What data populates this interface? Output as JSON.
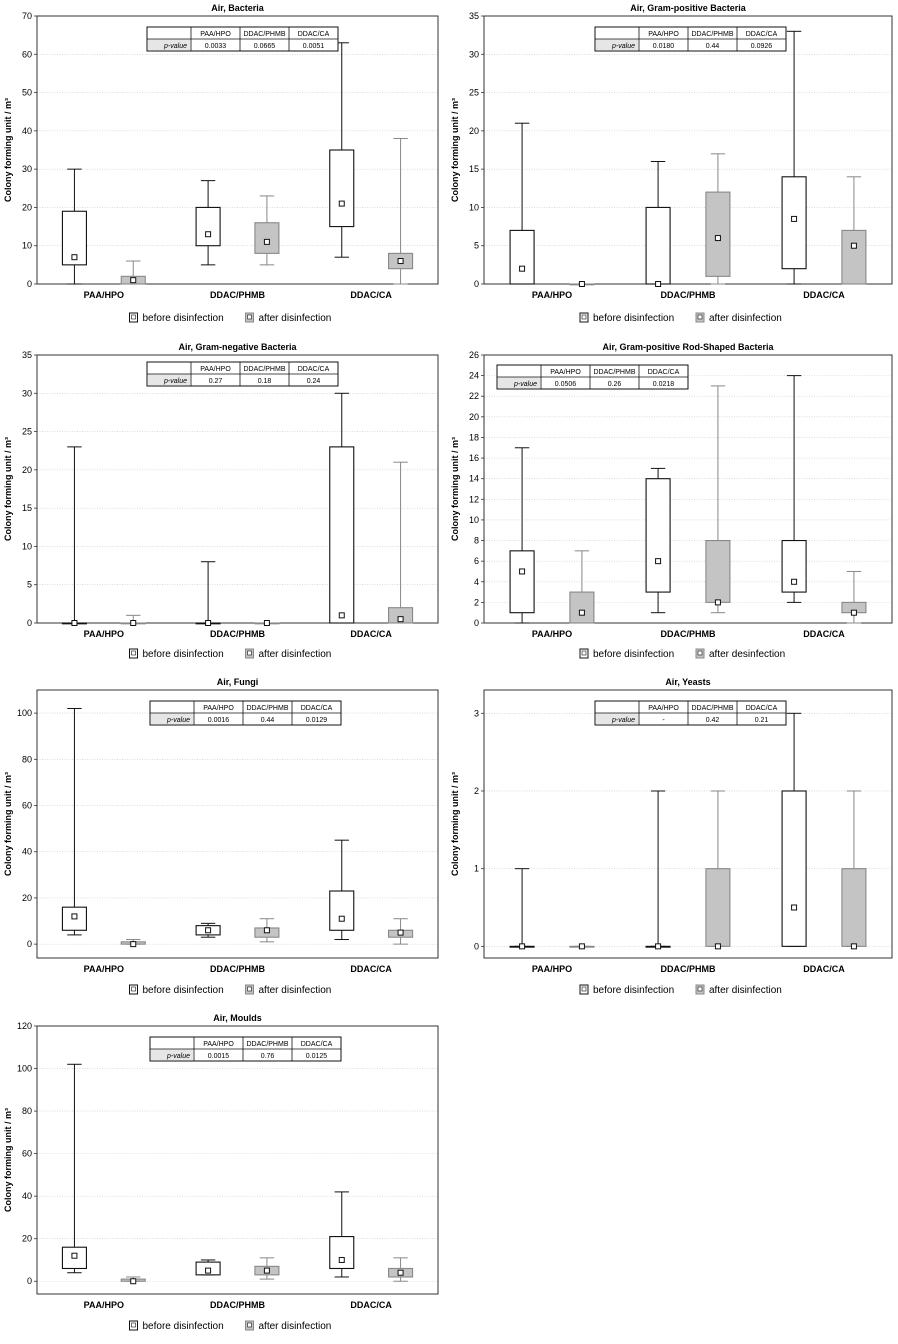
{
  "legend_text": {
    "before": "before disinfection",
    "after": "after disinfection",
    "after_alt": "after desinfection"
  },
  "colors": {
    "before_fill": "#ffffff",
    "after_fill": "#c4c4c4",
    "frame": "#333333",
    "grid": "#c8c8c8",
    "table_header_bg": "#ffffff",
    "table_label_bg": "#e6e6e6"
  },
  "chart_data": [
    {
      "type": "box",
      "title": "Air, Bacteria",
      "ylabel": "Colony forming unit / m³",
      "ylim": [
        0,
        70
      ],
      "yticks": [
        0,
        10,
        20,
        30,
        40,
        50,
        60,
        70
      ],
      "categories": [
        "PAA/HPO",
        "DDAC/PHMB",
        "DDAC/CA"
      ],
      "series": [
        {
          "name": "before disinfection",
          "boxes": [
            {
              "min": 0,
              "q1": 5,
              "median": 7,
              "q3": 19,
              "max": 30
            },
            {
              "min": 5,
              "q1": 10,
              "median": 13,
              "q3": 20,
              "max": 27
            },
            {
              "min": 7,
              "q1": 15,
              "median": 21,
              "q3": 35,
              "max": 63
            }
          ]
        },
        {
          "name": "after disinfection",
          "boxes": [
            {
              "min": 0,
              "q1": 0,
              "median": 1,
              "q3": 2,
              "max": 6
            },
            {
              "min": 5,
              "q1": 8,
              "median": 11,
              "q3": 16,
              "max": 23
            },
            {
              "min": 0,
              "q1": 4,
              "median": 6,
              "q3": 8,
              "max": 38
            }
          ]
        }
      ],
      "pvalue_table": {
        "label": "p-value",
        "headers": [
          "PAA/HPO",
          "DDAC/PHMB",
          "DDAC/CA"
        ],
        "values": [
          "0.0033",
          "0.0665",
          "0.0051"
        ]
      },
      "legend": [
        "before disinfection",
        "after disinfection"
      ]
    },
    {
      "type": "box",
      "title": "Air, Gram-positive Bacteria",
      "ylabel": "Colony forming unit / m³",
      "ylim": [
        0,
        35
      ],
      "yticks": [
        0,
        5,
        10,
        15,
        20,
        25,
        30,
        35
      ],
      "categories": [
        "PAA/HPO",
        "DDAC/PHMB",
        "DDAC/CA"
      ],
      "series": [
        {
          "name": "before disinfection",
          "boxes": [
            {
              "min": 0,
              "q1": 0,
              "median": 2,
              "q3": 7,
              "max": 21
            },
            {
              "min": 0,
              "q1": 0,
              "median": 0,
              "q3": 10,
              "max": 16
            },
            {
              "min": 0,
              "q1": 2,
              "median": 8.5,
              "q3": 14,
              "max": 33
            }
          ]
        },
        {
          "name": "after disinfection",
          "boxes": [
            {
              "min": 0,
              "q1": 0,
              "median": 0,
              "q3": 0,
              "max": 0
            },
            {
              "min": 0,
              "q1": 1,
              "median": 6,
              "q3": 12,
              "max": 17
            },
            {
              "min": 0,
              "q1": 0,
              "median": 5,
              "q3": 7,
              "max": 14
            }
          ]
        }
      ],
      "pvalue_table": {
        "label": "p-value",
        "headers": [
          "PAA/HPO",
          "DDAC/PHMB",
          "DDAC/CA"
        ],
        "values": [
          "0.0180",
          "0.44",
          "0.0926"
        ]
      },
      "legend": [
        "before disinfection",
        "after disinfection"
      ]
    },
    {
      "type": "box",
      "title": "Air, Gram-negative Bacteria",
      "ylabel": "Colony forming unit / m³",
      "ylim": [
        0,
        35
      ],
      "yticks": [
        0,
        5,
        10,
        15,
        20,
        25,
        30,
        35
      ],
      "categories": [
        "PAA/HPO",
        "DDAC/PHMB",
        "DDAC/CA"
      ],
      "series": [
        {
          "name": "before disinfection",
          "boxes": [
            {
              "min": 0,
              "q1": 0,
              "median": 0,
              "q3": 0,
              "max": 23
            },
            {
              "min": 0,
              "q1": 0,
              "median": 0,
              "q3": 0,
              "max": 8
            },
            {
              "min": 0,
              "q1": 0,
              "median": 1,
              "q3": 23,
              "max": 30
            }
          ]
        },
        {
          "name": "after disinfection",
          "boxes": [
            {
              "min": 0,
              "q1": 0,
              "median": 0,
              "q3": 0,
              "max": 1
            },
            {
              "min": 0,
              "q1": 0,
              "median": 0,
              "q3": 0,
              "max": 0
            },
            {
              "min": 0,
              "q1": 0,
              "median": 0.5,
              "q3": 2,
              "max": 21
            }
          ]
        }
      ],
      "pvalue_table": {
        "label": "p-value",
        "headers": [
          "PAA/HPO",
          "DDAC/PHMB",
          "DDAC/CA"
        ],
        "values": [
          "0.27",
          "0.18",
          "0.24"
        ]
      },
      "legend": [
        "before disinfection",
        "after disinfection"
      ]
    },
    {
      "type": "box",
      "title": "Air, Gram-positive Rod-Shaped Bacteria",
      "ylabel": "Colony forming unit / m³",
      "ylim": [
        0,
        26
      ],
      "yticks": [
        0,
        2,
        4,
        6,
        8,
        10,
        12,
        14,
        16,
        18,
        20,
        22,
        24,
        26
      ],
      "categories": [
        "PAA/HPO",
        "DDAC/PHMB",
        "DDAC/CA"
      ],
      "series": [
        {
          "name": "before disinfection",
          "boxes": [
            {
              "min": 0,
              "q1": 1,
              "median": 5,
              "q3": 7,
              "max": 17
            },
            {
              "min": 1,
              "q1": 3,
              "median": 6,
              "q3": 14,
              "max": 15
            },
            {
              "min": 2,
              "q1": 3,
              "median": 4,
              "q3": 8,
              "max": 24
            }
          ]
        },
        {
          "name": "after desinfection",
          "boxes": [
            {
              "min": 0,
              "q1": 0,
              "median": 1,
              "q3": 3,
              "max": 7
            },
            {
              "min": 1,
              "q1": 2,
              "median": 2,
              "q3": 8,
              "max": 23
            },
            {
              "min": 0,
              "q1": 1,
              "median": 1,
              "q3": 2,
              "max": 5
            }
          ]
        }
      ],
      "pvalue_table": {
        "label": "p-value",
        "headers": [
          "PAA/HPO",
          "DDAC/PHMB",
          "DDAC/CA"
        ],
        "values": [
          "0.0506",
          "0.26",
          "0.0218"
        ]
      },
      "legend": [
        "before disinfection",
        "after desinfection"
      ]
    },
    {
      "type": "box",
      "title": "Air, Fungi",
      "ylabel": "Colony forming unit / m³",
      "ylim": [
        -6,
        110
      ],
      "yticks": [
        0,
        20,
        40,
        60,
        80,
        100
      ],
      "categories": [
        "PAA/HPO",
        "DDAC/PHMB",
        "DDAC/CA"
      ],
      "series": [
        {
          "name": "before disinfection",
          "boxes": [
            {
              "min": 4,
              "q1": 6,
              "median": 12,
              "q3": 16,
              "max": 102
            },
            {
              "min": 3,
              "q1": 4,
              "median": 6,
              "q3": 8,
              "max": 9
            },
            {
              "min": 2,
              "q1": 6,
              "median": 11,
              "q3": 23,
              "max": 45
            }
          ]
        },
        {
          "name": "after disinfection",
          "boxes": [
            {
              "min": 0,
              "q1": 0,
              "median": 0,
              "q3": 1,
              "max": 2
            },
            {
              "min": 1,
              "q1": 3,
              "median": 6,
              "q3": 7,
              "max": 11
            },
            {
              "min": 0,
              "q1": 3,
              "median": 5,
              "q3": 6,
              "max": 11
            }
          ]
        }
      ],
      "pvalue_table": {
        "label": "p-value",
        "headers": [
          "PAA/HPO",
          "DDAC/PHMB",
          "DDAC/CA"
        ],
        "values": [
          "0.0016",
          "0.44",
          "0.0129"
        ]
      },
      "legend": [
        "before disinfection",
        "after disinfection"
      ]
    },
    {
      "type": "box",
      "title": "Air, Yeasts",
      "ylabel": "Colony forming unit / m³",
      "ylim": [
        -0.15,
        3.3
      ],
      "yticks": [
        0,
        1,
        2,
        3
      ],
      "categories": [
        "PAA/HPO",
        "DDAC/PHMB",
        "DDAC/CA"
      ],
      "series": [
        {
          "name": "before disinfection",
          "boxes": [
            {
              "min": 0,
              "q1": 0,
              "median": 0,
              "q3": 0,
              "max": 1
            },
            {
              "min": 0,
              "q1": 0,
              "median": 0,
              "q3": 0,
              "max": 2
            },
            {
              "min": 0,
              "q1": 0,
              "median": 0.5,
              "q3": 2,
              "max": 3
            }
          ]
        },
        {
          "name": "after disinfection",
          "boxes": [
            {
              "min": 0,
              "q1": 0,
              "median": 0,
              "q3": 0,
              "max": 0
            },
            {
              "min": 0,
              "q1": 0,
              "median": 0,
              "q3": 1,
              "max": 2
            },
            {
              "min": 0,
              "q1": 0,
              "median": 0,
              "q3": 1,
              "max": 2
            }
          ]
        }
      ],
      "pvalue_table": {
        "label": "p-value",
        "headers": [
          "PAA/HPO",
          "DDAC/PHMB",
          "DDAC/CA"
        ],
        "values": [
          "-",
          "0.42",
          "0.21"
        ]
      },
      "legend": [
        "before disinfection",
        "after disinfection"
      ]
    },
    {
      "type": "box",
      "title": "Air, Moulds",
      "ylabel": "Colony forming unit / m³",
      "ylim": [
        -6,
        120
      ],
      "yticks": [
        0,
        20,
        40,
        60,
        80,
        100,
        120
      ],
      "categories": [
        "PAA/HPO",
        "DDAC/PHMB",
        "DDAC/CA"
      ],
      "series": [
        {
          "name": "before disinfection",
          "boxes": [
            {
              "min": 4,
              "q1": 6,
              "median": 12,
              "q3": 16,
              "max": 102
            },
            {
              "min": 3,
              "q1": 3,
              "median": 5,
              "q3": 9,
              "max": 10
            },
            {
              "min": 2,
              "q1": 6,
              "median": 10,
              "q3": 21,
              "max": 42
            }
          ]
        },
        {
          "name": "after disinfection",
          "boxes": [
            {
              "min": 0,
              "q1": 0,
              "median": 0,
              "q3": 1,
              "max": 2
            },
            {
              "min": 1,
              "q1": 3,
              "median": 5,
              "q3": 7,
              "max": 11
            },
            {
              "min": 0,
              "q1": 2,
              "median": 4,
              "q3": 6,
              "max": 11
            }
          ]
        }
      ],
      "pvalue_table": {
        "label": "p-value",
        "headers": [
          "PAA/HPO",
          "DDAC/PHMB",
          "DDAC/CA"
        ],
        "values": [
          "0.0015",
          "0.76",
          "0.0125"
        ]
      },
      "legend": [
        "before disinfection",
        "after disinfection"
      ]
    }
  ]
}
